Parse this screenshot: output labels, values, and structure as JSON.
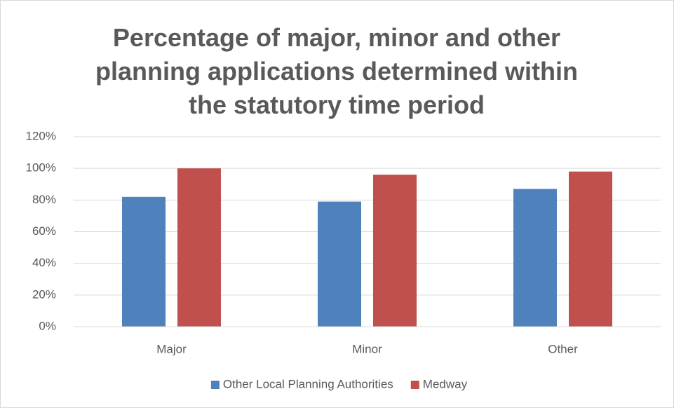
{
  "chart_data": {
    "type": "bar",
    "title": "Percentage of major, minor and other planning applications determined within the statutory time period",
    "categories": [
      "Major",
      "Minor",
      "Other"
    ],
    "series": [
      {
        "name": "Other Local Planning Authorities",
        "color": "#4f81bd",
        "values": [
          82,
          79,
          87
        ]
      },
      {
        "name": "Medway",
        "color": "#c0504d",
        "values": [
          100,
          96,
          98
        ]
      }
    ],
    "ylim": [
      0,
      120
    ],
    "yticks": [
      {
        "value": 0,
        "label": "0%"
      },
      {
        "value": 20,
        "label": "20%"
      },
      {
        "value": 40,
        "label": "40%"
      },
      {
        "value": 60,
        "label": "60%"
      },
      {
        "value": 80,
        "label": "80%"
      },
      {
        "value": 100,
        "label": "100%"
      },
      {
        "value": 120,
        "label": "120%"
      }
    ],
    "grid": true,
    "legend": "bottom"
  }
}
